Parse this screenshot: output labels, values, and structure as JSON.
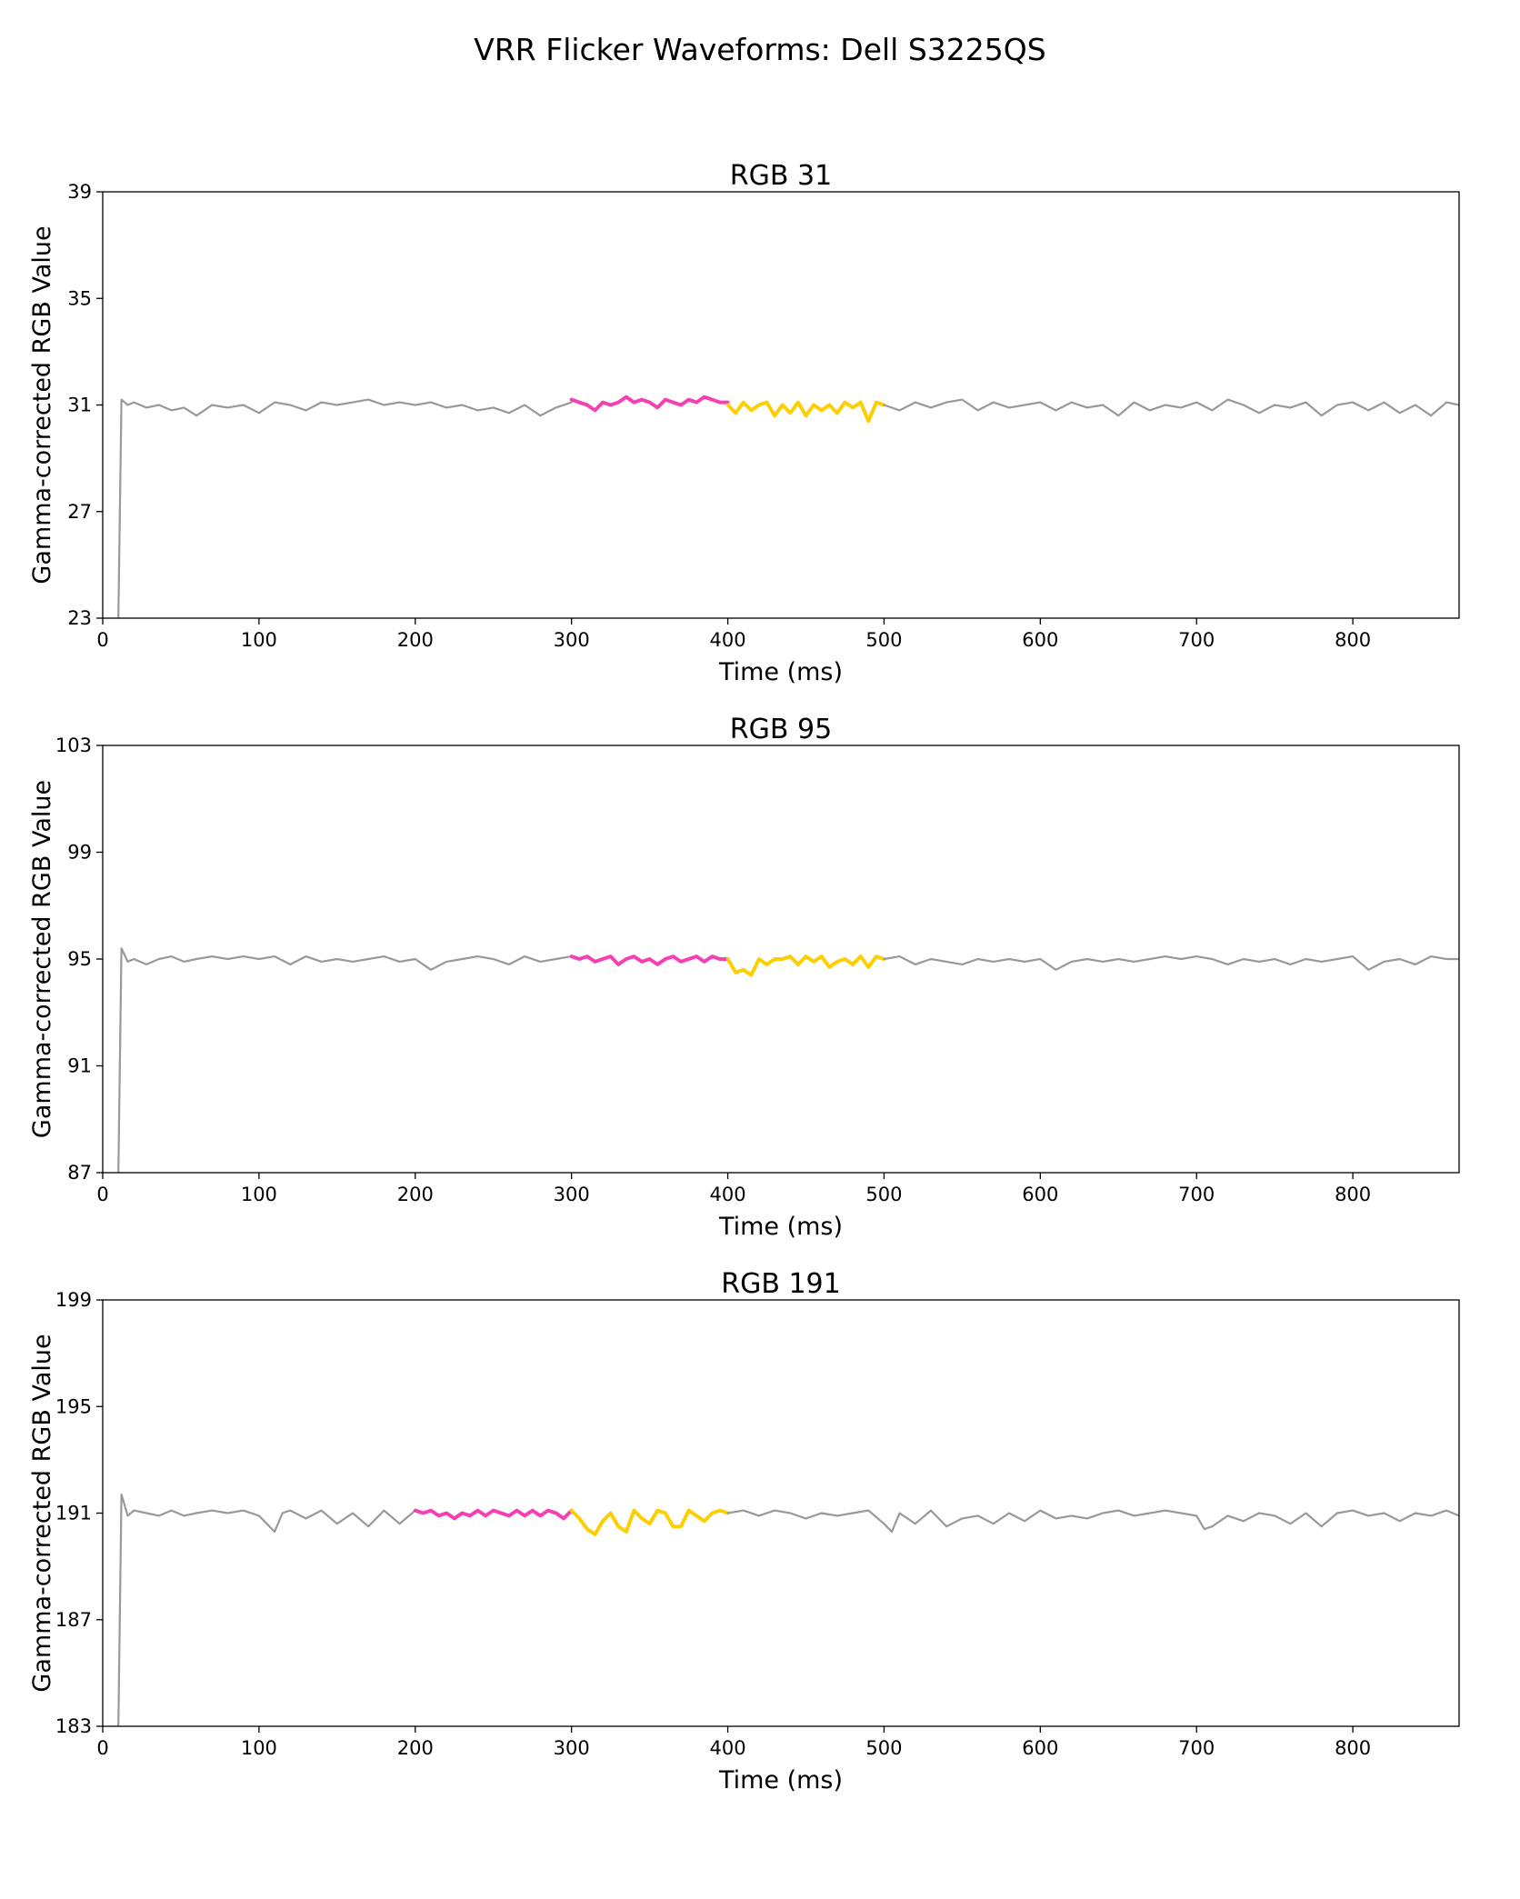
{
  "figure": {
    "title": "VRR Flicker Waveforms: Dell S3225QS"
  },
  "colors": {
    "baseline": "#999999",
    "segment_a": "#f53fb3",
    "segment_b": "#fdcf00",
    "frame": "#000000"
  },
  "chart_data": [
    {
      "type": "line",
      "title": "RGB 31",
      "xlabel": "Time (ms)",
      "ylabel": "Gamma-corrected RGB Value",
      "xlim": [
        0,
        868
      ],
      "ylim": [
        23,
        39
      ],
      "xticks": [
        0,
        100,
        200,
        300,
        400,
        500,
        600,
        700,
        800
      ],
      "yticks": [
        23,
        27,
        31,
        35,
        39
      ],
      "grid": false,
      "series": [
        {
          "role": "baseline",
          "color": "#999999",
          "x": [
            10,
            12,
            16,
            20,
            28,
            36,
            44,
            52,
            60,
            70,
            80,
            90,
            100,
            110,
            120,
            130,
            140,
            150,
            160,
            170,
            180,
            190,
            200,
            210,
            220,
            230,
            240,
            250,
            260,
            270,
            280,
            290,
            300
          ],
          "y": [
            23.0,
            31.2,
            31.0,
            31.1,
            30.9,
            31.0,
            30.8,
            30.9,
            30.6,
            31.0,
            30.9,
            31.0,
            30.7,
            31.1,
            31.0,
            30.8,
            31.1,
            31.0,
            31.1,
            31.2,
            31.0,
            31.1,
            31.0,
            31.1,
            30.9,
            31.0,
            30.8,
            30.9,
            30.7,
            31.0,
            30.6,
            30.9,
            31.1
          ]
        },
        {
          "role": "segment_a",
          "color": "#f53fb3",
          "x": [
            300,
            305,
            310,
            315,
            320,
            325,
            330,
            335,
            340,
            345,
            350,
            355,
            360,
            365,
            370,
            375,
            380,
            385,
            390,
            395,
            400
          ],
          "y": [
            31.2,
            31.1,
            31.0,
            30.8,
            31.1,
            31.0,
            31.1,
            31.3,
            31.1,
            31.2,
            31.1,
            30.9,
            31.2,
            31.1,
            31.0,
            31.2,
            31.1,
            31.3,
            31.2,
            31.1,
            31.1
          ]
        },
        {
          "role": "segment_b",
          "color": "#fdcf00",
          "x": [
            400,
            405,
            410,
            415,
            420,
            425,
            430,
            435,
            440,
            445,
            450,
            455,
            460,
            465,
            470,
            475,
            480,
            485,
            490,
            495,
            500
          ],
          "y": [
            31.0,
            30.7,
            31.1,
            30.8,
            31.0,
            31.1,
            30.6,
            31.0,
            30.7,
            31.1,
            30.6,
            31.0,
            30.8,
            31.0,
            30.7,
            31.1,
            30.9,
            31.1,
            30.4,
            31.1,
            31.0
          ]
        },
        {
          "role": "baseline",
          "color": "#999999",
          "x": [
            500,
            510,
            520,
            530,
            540,
            550,
            560,
            570,
            580,
            590,
            600,
            610,
            620,
            630,
            640,
            650,
            660,
            670,
            680,
            690,
            700,
            710,
            720,
            730,
            740,
            750,
            760,
            770,
            780,
            790,
            800,
            810,
            820,
            830,
            840,
            850,
            860,
            868
          ],
          "y": [
            31.0,
            30.8,
            31.1,
            30.9,
            31.1,
            31.2,
            30.8,
            31.1,
            30.9,
            31.0,
            31.1,
            30.8,
            31.1,
            30.9,
            31.0,
            30.6,
            31.1,
            30.8,
            31.0,
            30.9,
            31.1,
            30.8,
            31.2,
            31.0,
            30.7,
            31.0,
            30.9,
            31.1,
            30.6,
            31.0,
            31.1,
            30.8,
            31.1,
            30.7,
            31.0,
            30.6,
            31.1,
            31.0
          ]
        }
      ]
    },
    {
      "type": "line",
      "title": "RGB 95",
      "xlabel": "Time (ms)",
      "ylabel": "Gamma-corrected RGB Value",
      "xlim": [
        0,
        868
      ],
      "ylim": [
        87,
        103
      ],
      "xticks": [
        0,
        100,
        200,
        300,
        400,
        500,
        600,
        700,
        800
      ],
      "yticks": [
        87,
        91,
        95,
        99,
        103
      ],
      "grid": false,
      "series": [
        {
          "role": "baseline",
          "color": "#999999",
          "x": [
            10,
            12,
            16,
            20,
            28,
            36,
            44,
            52,
            60,
            70,
            80,
            90,
            100,
            110,
            120,
            130,
            140,
            150,
            160,
            170,
            180,
            190,
            200,
            210,
            220,
            230,
            240,
            250,
            260,
            270,
            280,
            290,
            300
          ],
          "y": [
            87.0,
            95.4,
            94.9,
            95.0,
            94.8,
            95.0,
            95.1,
            94.9,
            95.0,
            95.1,
            95.0,
            95.1,
            95.0,
            95.1,
            94.8,
            95.1,
            94.9,
            95.0,
            94.9,
            95.0,
            95.1,
            94.9,
            95.0,
            94.6,
            94.9,
            95.0,
            95.1,
            95.0,
            94.8,
            95.1,
            94.9,
            95.0,
            95.1
          ]
        },
        {
          "role": "segment_a",
          "color": "#f53fb3",
          "x": [
            300,
            305,
            310,
            315,
            320,
            325,
            330,
            335,
            340,
            345,
            350,
            355,
            360,
            365,
            370,
            375,
            380,
            385,
            390,
            395,
            400
          ],
          "y": [
            95.1,
            95.0,
            95.1,
            94.9,
            95.0,
            95.1,
            94.8,
            95.0,
            95.1,
            94.9,
            95.0,
            94.8,
            95.0,
            95.1,
            94.9,
            95.0,
            95.1,
            94.9,
            95.1,
            95.0,
            95.0
          ]
        },
        {
          "role": "segment_b",
          "color": "#fdcf00",
          "x": [
            400,
            405,
            410,
            415,
            420,
            425,
            430,
            435,
            440,
            445,
            450,
            455,
            460,
            465,
            470,
            475,
            480,
            485,
            490,
            495,
            500
          ],
          "y": [
            95.0,
            94.5,
            94.6,
            94.4,
            95.0,
            94.8,
            95.0,
            95.0,
            95.1,
            94.8,
            95.1,
            94.9,
            95.1,
            94.7,
            94.9,
            95.0,
            94.8,
            95.1,
            94.7,
            95.1,
            95.0
          ]
        },
        {
          "role": "baseline",
          "color": "#999999",
          "x": [
            500,
            510,
            520,
            530,
            540,
            550,
            560,
            570,
            580,
            590,
            600,
            610,
            620,
            630,
            640,
            650,
            660,
            670,
            680,
            690,
            700,
            710,
            720,
            730,
            740,
            750,
            760,
            770,
            780,
            790,
            800,
            810,
            820,
            830,
            840,
            850,
            860,
            868
          ],
          "y": [
            95.0,
            95.1,
            94.8,
            95.0,
            94.9,
            94.8,
            95.0,
            94.9,
            95.0,
            94.9,
            95.0,
            94.6,
            94.9,
            95.0,
            94.9,
            95.0,
            94.9,
            95.0,
            95.1,
            95.0,
            95.1,
            95.0,
            94.8,
            95.0,
            94.9,
            95.0,
            94.8,
            95.0,
            94.9,
            95.0,
            95.1,
            94.6,
            94.9,
            95.0,
            94.8,
            95.1,
            95.0,
            95.0
          ]
        }
      ]
    },
    {
      "type": "line",
      "title": "RGB 191",
      "xlabel": "Time (ms)",
      "ylabel": "Gamma-corrected RGB Value",
      "xlim": [
        0,
        868
      ],
      "ylim": [
        183,
        199
      ],
      "xticks": [
        0,
        100,
        200,
        300,
        400,
        500,
        600,
        700,
        800
      ],
      "yticks": [
        183,
        187,
        191,
        195,
        199
      ],
      "grid": false,
      "series": [
        {
          "role": "baseline",
          "color": "#999999",
          "x": [
            10,
            12,
            16,
            20,
            28,
            36,
            44,
            52,
            60,
            70,
            80,
            90,
            100,
            105,
            110,
            115,
            120,
            130,
            140,
            150,
            160,
            170,
            180,
            190,
            200
          ],
          "y": [
            183.0,
            191.7,
            190.9,
            191.1,
            191.0,
            190.9,
            191.1,
            190.9,
            191.0,
            191.1,
            191.0,
            191.1,
            190.9,
            190.6,
            190.3,
            191.0,
            191.1,
            190.8,
            191.1,
            190.6,
            191.0,
            190.5,
            191.1,
            190.6,
            191.1
          ]
        },
        {
          "role": "segment_a",
          "color": "#f53fb3",
          "x": [
            200,
            205,
            210,
            215,
            220,
            225,
            230,
            235,
            240,
            245,
            250,
            255,
            260,
            265,
            270,
            275,
            280,
            285,
            290,
            295,
            300
          ],
          "y": [
            191.1,
            191.0,
            191.1,
            190.9,
            191.0,
            190.8,
            191.0,
            190.9,
            191.1,
            190.9,
            191.1,
            191.0,
            190.9,
            191.1,
            190.9,
            191.1,
            190.9,
            191.1,
            191.0,
            190.8,
            191.1
          ]
        },
        {
          "role": "segment_b",
          "color": "#fdcf00",
          "x": [
            300,
            305,
            310,
            315,
            320,
            325,
            330,
            335,
            340,
            345,
            350,
            355,
            360,
            365,
            370,
            375,
            380,
            385,
            390,
            395,
            400
          ],
          "y": [
            191.1,
            190.8,
            190.4,
            190.2,
            190.7,
            191.0,
            190.5,
            190.3,
            191.1,
            190.8,
            190.6,
            191.1,
            191.0,
            190.5,
            190.5,
            191.1,
            190.9,
            190.7,
            191.0,
            191.1,
            191.0
          ]
        },
        {
          "role": "baseline",
          "color": "#999999",
          "x": [
            400,
            410,
            420,
            430,
            440,
            450,
            460,
            470,
            480,
            490,
            500,
            505,
            510,
            520,
            530,
            540,
            550,
            560,
            570,
            580,
            590,
            600,
            610,
            620,
            630,
            640,
            650,
            660,
            670,
            680,
            690,
            700,
            705,
            710,
            720,
            730,
            740,
            750,
            760,
            770,
            780,
            790,
            800,
            810,
            820,
            830,
            840,
            850,
            860,
            868
          ],
          "y": [
            191.0,
            191.1,
            190.9,
            191.1,
            191.0,
            190.8,
            191.0,
            190.9,
            191.0,
            191.1,
            190.6,
            190.3,
            191.0,
            190.6,
            191.1,
            190.5,
            190.8,
            190.9,
            190.6,
            191.0,
            190.7,
            191.1,
            190.8,
            190.9,
            190.8,
            191.0,
            191.1,
            190.9,
            191.0,
            191.1,
            191.0,
            190.9,
            190.4,
            190.5,
            190.9,
            190.7,
            191.0,
            190.9,
            190.6,
            191.0,
            190.5,
            191.0,
            191.1,
            190.9,
            191.0,
            190.7,
            191.0,
            190.9,
            191.1,
            190.9
          ]
        }
      ]
    }
  ]
}
